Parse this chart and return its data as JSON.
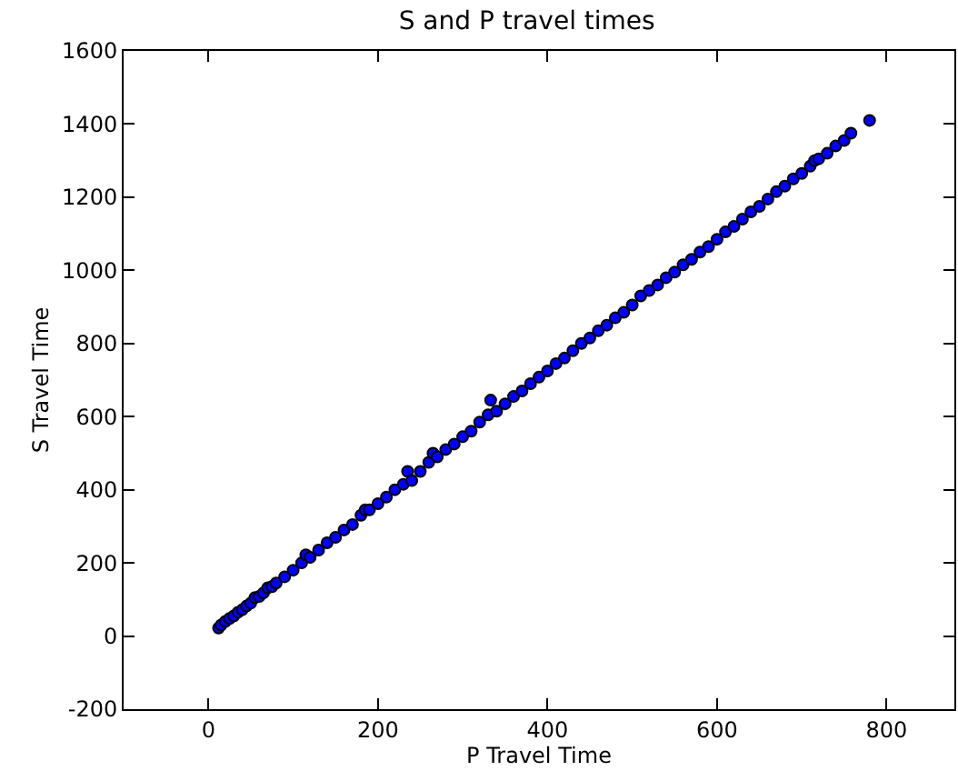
{
  "chart_data": {
    "type": "scatter",
    "title": "S and P travel times",
    "xlabel": "P Travel Time",
    "ylabel": "S Travel Time",
    "xlim": [
      -100,
      880
    ],
    "xticks": [
      0,
      200,
      400,
      600,
      800
    ],
    "ylim": [
      -200,
      1600
    ],
    "yticks": [
      -200,
      0,
      200,
      400,
      600,
      800,
      1000,
      1200,
      1400,
      1600
    ],
    "marker": "circle",
    "series": [
      {
        "color": "#0000ff",
        "x": [
          12,
          15,
          20,
          25,
          30,
          35,
          40,
          45,
          50,
          55,
          60,
          65,
          70,
          75,
          80,
          90,
          100,
          110,
          115,
          120,
          130,
          140,
          150,
          160,
          170,
          180,
          185,
          190,
          200,
          210,
          220,
          230,
          235,
          240,
          250,
          260,
          265,
          270,
          280,
          290,
          300,
          310,
          320,
          330,
          333,
          340,
          350,
          360,
          370,
          380,
          390,
          400,
          410,
          420,
          430,
          440,
          450,
          460,
          470,
          480,
          490,
          500,
          510,
          520,
          530,
          540,
          550,
          560,
          570,
          580,
          590,
          600,
          610,
          620,
          630,
          640,
          650,
          660,
          670,
          680,
          690,
          700,
          710,
          715,
          720,
          730,
          740,
          750,
          758,
          780
        ],
        "values": [
          22,
          30,
          40,
          48,
          55,
          65,
          72,
          82,
          90,
          105,
          108,
          118,
          132,
          135,
          145,
          162,
          180,
          200,
          222,
          215,
          235,
          255,
          270,
          290,
          305,
          330,
          345,
          345,
          362,
          380,
          400,
          415,
          450,
          425,
          450,
          475,
          500,
          490,
          510,
          525,
          545,
          560,
          585,
          605,
          645,
          615,
          635,
          655,
          670,
          690,
          708,
          725,
          745,
          760,
          780,
          800,
          815,
          835,
          850,
          870,
          885,
          905,
          930,
          945,
          960,
          980,
          995,
          1015,
          1030,
          1050,
          1065,
          1085,
          1105,
          1120,
          1140,
          1160,
          1175,
          1195,
          1215,
          1230,
          1250,
          1265,
          1285,
          1300,
          1305,
          1320,
          1340,
          1355,
          1375,
          1410
        ]
      }
    ]
  }
}
